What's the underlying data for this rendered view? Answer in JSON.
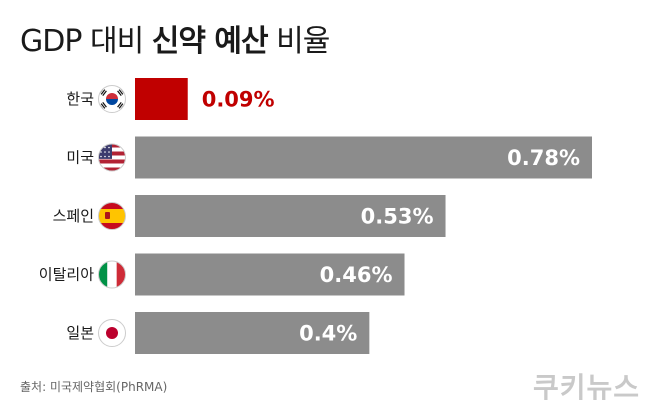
{
  "title": {
    "part1": "GDP 대비 ",
    "part2": "신약 예산",
    "part3": " 비율"
  },
  "source": "출처: 미국제약협회(PhRMA)",
  "logo": "쿠키뉴스",
  "colors": {
    "highlight": "#c00000",
    "bar": "#8c8c8c",
    "text": "#1a1a1a"
  },
  "chart_data": {
    "type": "bar",
    "orientation": "horizontal",
    "categories": [
      "한국",
      "미국",
      "스페인",
      "이탈리아",
      "일본"
    ],
    "flags": [
      "korea-flag-icon",
      "usa-flag-icon",
      "spain-flag-icon",
      "italy-flag-icon",
      "japan-flag-icon"
    ],
    "values": [
      0.09,
      0.78,
      0.53,
      0.46,
      0.4
    ],
    "labels": [
      "0.09%",
      "0.78%",
      "0.53%",
      "0.46%",
      "0.4%"
    ],
    "unit": "%",
    "highlight_index": 0,
    "xlim": [
      0,
      0.78
    ],
    "grid": false,
    "legend": "none"
  }
}
